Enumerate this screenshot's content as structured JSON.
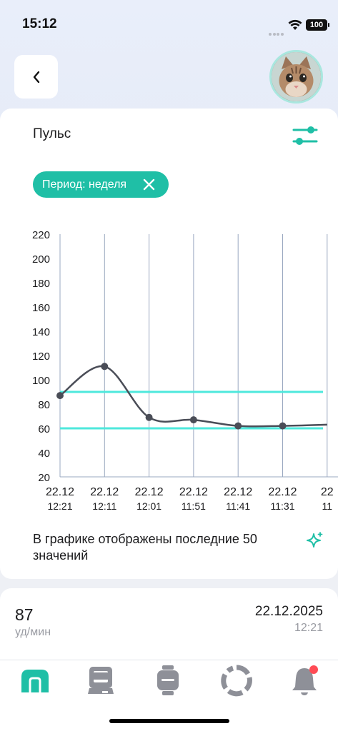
{
  "status_bar": {
    "time": "15:12",
    "battery": "100"
  },
  "header": {
    "back_icon": "chevron-left-icon",
    "avatar": "cat-avatar"
  },
  "card": {
    "title": "Пульс",
    "filter_icon": "sliders-icon",
    "chip": {
      "label": "Период: неделя",
      "close_icon": "close-icon"
    },
    "note": "В графике отображены последние 50 значений",
    "note_icon": "sparkle-icon"
  },
  "chart_data": {
    "type": "line",
    "y_ticks": [
      "220",
      "200",
      "180",
      "160",
      "140",
      "120",
      "100",
      "80",
      "60",
      "40",
      "20"
    ],
    "ylim": [
      20,
      220
    ],
    "x_ticks": [
      {
        "date": "22.12",
        "time": "12:21"
      },
      {
        "date": "22.12",
        "time": "12:11"
      },
      {
        "date": "22.12",
        "time": "12:01"
      },
      {
        "date": "22.12",
        "time": "11:51"
      },
      {
        "date": "22.12",
        "time": "11:41"
      },
      {
        "date": "22.12",
        "time": "11:31"
      },
      {
        "date": "22",
        "time": "11"
      }
    ],
    "values": [
      87,
      111,
      69,
      67,
      62,
      62,
      63
    ],
    "reference_lines": [
      90,
      60
    ],
    "colors": {
      "line": "#4a4d57",
      "reference": "#4ee8dc",
      "grid": "#9aa8c0"
    }
  },
  "record": {
    "value": "87",
    "unit": "уд/мин",
    "date": "22.12.2025",
    "time": "12:21"
  },
  "tabbar": {
    "items": [
      "home-icon",
      "devices-icon",
      "watch-icon",
      "progress-icon",
      "bell-icon"
    ],
    "accent": "#1fbfa6",
    "inactive": "#9a9ca3",
    "badge": "#ff4b55"
  }
}
